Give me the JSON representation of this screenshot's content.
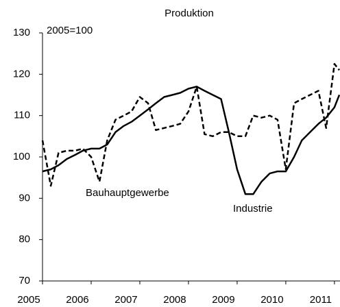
{
  "chart_data": {
    "type": "line",
    "title": "Produktion",
    "subtitle": "2005=100",
    "x": [
      2005,
      2005.17,
      2005.33,
      2005.5,
      2005.67,
      2005.83,
      2006,
      2006.17,
      2006.33,
      2006.5,
      2006.67,
      2006.83,
      2007,
      2007.17,
      2007.33,
      2007.5,
      2007.67,
      2007.83,
      2008,
      2008.17,
      2008.33,
      2008.5,
      2008.67,
      2008.83,
      2009,
      2009.17,
      2009.33,
      2009.5,
      2009.67,
      2009.83,
      2010,
      2010.17,
      2010.33,
      2010.5,
      2010.67,
      2010.83,
      2011,
      2011.1
    ],
    "series": [
      {
        "name": "Industrie",
        "color": "#000000",
        "dashed": false,
        "values": [
          96.5,
          97,
          98,
          99.5,
          100.5,
          101.5,
          102,
          102,
          103,
          106,
          107.5,
          108.5,
          110,
          111.5,
          113,
          114.5,
          115,
          115.5,
          116.5,
          117,
          116,
          115,
          114,
          106,
          97,
          91,
          91,
          94,
          96,
          96.5,
          96.5,
          100,
          104,
          106,
          108,
          109.5,
          112,
          115
        ]
      },
      {
        "name": "Bauhauptgewerbe",
        "color": "#000000",
        "dashed": true,
        "values": [
          104,
          93,
          101,
          101.5,
          101.5,
          102,
          100,
          94,
          104,
          109,
          110,
          111,
          114.5,
          113,
          106.5,
          107,
          107.5,
          108,
          111,
          117,
          105.5,
          105,
          106,
          106,
          105,
          105,
          110,
          109.5,
          110,
          109,
          97,
          113,
          114,
          115,
          116,
          107,
          122.5,
          121
        ]
      }
    ],
    "xlim": [
      2005,
      2011.1
    ],
    "xticks": [
      2005,
      2006,
      2007,
      2008,
      2009,
      2010,
      2011
    ],
    "ylim": [
      70,
      130
    ],
    "yticks": [
      70,
      80,
      90,
      100,
      110,
      120,
      130
    ],
    "grid": false
  }
}
